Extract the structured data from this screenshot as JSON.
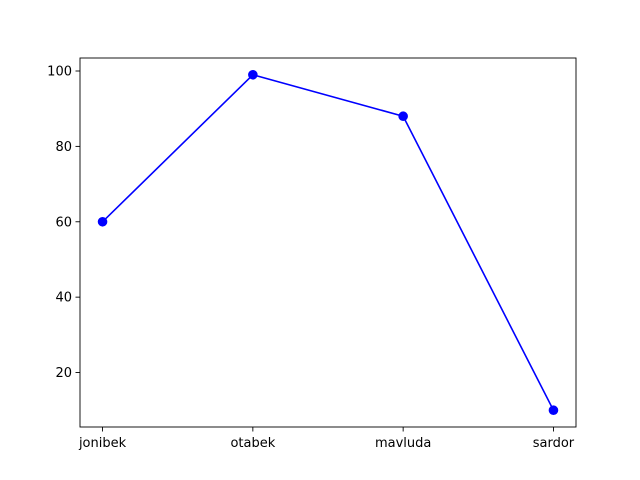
{
  "chart_data": {
    "type": "line",
    "title": "",
    "xlabel": "",
    "ylabel": "",
    "categories": [
      "jonibek",
      "otabek",
      "mavluda",
      "sardor"
    ],
    "series": [
      {
        "values": [
          60,
          99,
          88,
          10
        ],
        "color": "#0000ff",
        "marker": "circle"
      }
    ],
    "ylim": [
      5.55,
      103.45
    ],
    "yticks": [
      20,
      40,
      60,
      80,
      100
    ],
    "ytick_labels": [
      "20",
      "40",
      "60",
      "80",
      "100"
    ],
    "grid": false,
    "legend": "none"
  }
}
